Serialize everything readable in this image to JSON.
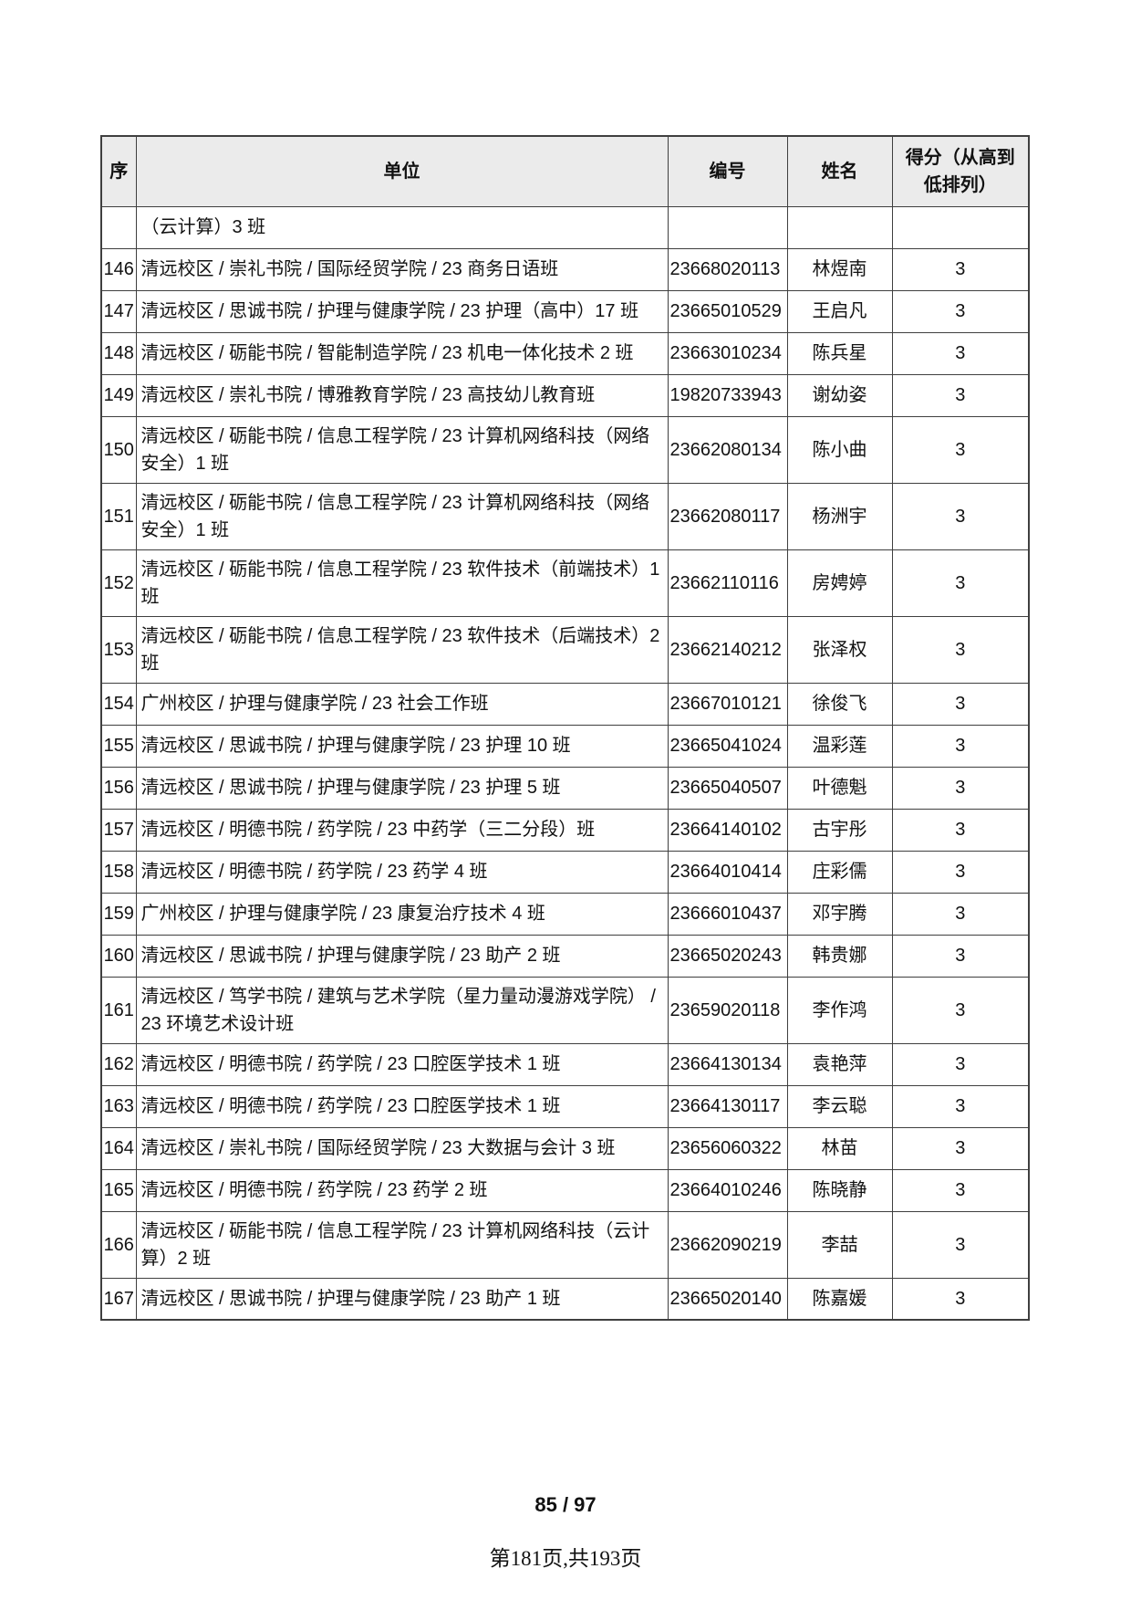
{
  "table": {
    "headers": {
      "seq": "序",
      "unit": "单位",
      "id": "编号",
      "name": "姓名",
      "score": "得分（从高到低排列）"
    },
    "rows": [
      {
        "seq": "",
        "unit": "（云计算）3 班",
        "id": "",
        "name": "",
        "score": ""
      },
      {
        "seq": "146",
        "unit": "清远校区 / 崇礼书院 / 国际经贸学院 / 23 商务日语班",
        "id": "23668020113",
        "name": "林煜南",
        "score": "3"
      },
      {
        "seq": "147",
        "unit": "清远校区 / 思诚书院 / 护理与健康学院 / 23 护理（高中）17 班",
        "id": "23665010529",
        "name": "王启凡",
        "score": "3"
      },
      {
        "seq": "148",
        "unit": "清远校区 / 砺能书院 / 智能制造学院 / 23 机电一体化技术 2 班",
        "id": "23663010234",
        "name": "陈兵星",
        "score": "3"
      },
      {
        "seq": "149",
        "unit": "清远校区 / 崇礼书院 / 博雅教育学院 / 23 高技幼儿教育班",
        "id": "19820733943",
        "name": "谢幼姿",
        "score": "3"
      },
      {
        "seq": "150",
        "unit": "清远校区 / 砺能书院 / 信息工程学院 / 23 计算机网络科技（网络安全）1 班",
        "id": "23662080134",
        "name": "陈小曲",
        "score": "3"
      },
      {
        "seq": "151",
        "unit": "清远校区 / 砺能书院 / 信息工程学院 / 23 计算机网络科技（网络安全）1 班",
        "id": "23662080117",
        "name": "杨洲宇",
        "score": "3"
      },
      {
        "seq": "152",
        "unit": "清远校区 / 砺能书院 / 信息工程学院 / 23 软件技术（前端技术）1 班",
        "id": "23662110116",
        "name": "房娉婷",
        "score": "3"
      },
      {
        "seq": "153",
        "unit": "清远校区 / 砺能书院 / 信息工程学院 / 23 软件技术（后端技术）2 班",
        "id": "23662140212",
        "name": "张泽权",
        "score": "3"
      },
      {
        "seq": "154",
        "unit": "广州校区 / 护理与健康学院 / 23 社会工作班",
        "id": "23667010121",
        "name": "徐俊飞",
        "score": "3"
      },
      {
        "seq": "155",
        "unit": "清远校区 / 思诚书院 / 护理与健康学院 / 23 护理 10 班",
        "id": "23665041024",
        "name": "温彩莲",
        "score": "3"
      },
      {
        "seq": "156",
        "unit": "清远校区 / 思诚书院 / 护理与健康学院 / 23 护理 5 班",
        "id": "23665040507",
        "name": "叶德魁",
        "score": "3"
      },
      {
        "seq": "157",
        "unit": "清远校区 / 明德书院 / 药学院 / 23 中药学（三二分段）班",
        "id": "23664140102",
        "name": "古宇彤",
        "score": "3"
      },
      {
        "seq": "158",
        "unit": "清远校区 / 明德书院 / 药学院 / 23 药学 4 班",
        "id": "23664010414",
        "name": "庄彩儒",
        "score": "3"
      },
      {
        "seq": "159",
        "unit": "广州校区 / 护理与健康学院 / 23 康复治疗技术 4 班",
        "id": "23666010437",
        "name": "邓宇腾",
        "score": "3"
      },
      {
        "seq": "160",
        "unit": "清远校区 / 思诚书院 / 护理与健康学院 / 23 助产 2 班",
        "id": "23665020243",
        "name": "韩贵娜",
        "score": "3"
      },
      {
        "seq": "161",
        "unit": "清远校区 / 笃学书院 / 建筑与艺术学院（星力量动漫游戏学院） / 23 环境艺术设计班",
        "id": "23659020118",
        "name": "李作鸿",
        "score": "3"
      },
      {
        "seq": "162",
        "unit": "清远校区 / 明德书院 / 药学院 / 23 口腔医学技术 1 班",
        "id": "23664130134",
        "name": "袁艳萍",
        "score": "3"
      },
      {
        "seq": "163",
        "unit": "清远校区 / 明德书院 / 药学院 / 23 口腔医学技术 1 班",
        "id": "23664130117",
        "name": "李云聪",
        "score": "3"
      },
      {
        "seq": "164",
        "unit": "清远校区 / 崇礼书院 / 国际经贸学院 / 23 大数据与会计 3 班",
        "id": "23656060322",
        "name": "林苗",
        "score": "3"
      },
      {
        "seq": "165",
        "unit": "清远校区 / 明德书院 / 药学院 / 23 药学 2 班",
        "id": "23664010246",
        "name": "陈晓静",
        "score": "3"
      },
      {
        "seq": "166",
        "unit": "清远校区 / 砺能书院 / 信息工程学院 / 23 计算机网络科技（云计算）2 班",
        "id": "23662090219",
        "name": "李喆",
        "score": "3"
      },
      {
        "seq": "167",
        "unit": "清远校区 / 思诚书院 / 护理与健康学院 / 23 助产 1 班",
        "id": "23665020140",
        "name": "陈嘉媛",
        "score": "3"
      }
    ]
  },
  "footer": {
    "progress": "85 / 97",
    "page_info": "第181页,共193页"
  },
  "colors": {
    "header_bg": "#ebebeb",
    "border": "#3f3f3f",
    "text": "#111111"
  }
}
